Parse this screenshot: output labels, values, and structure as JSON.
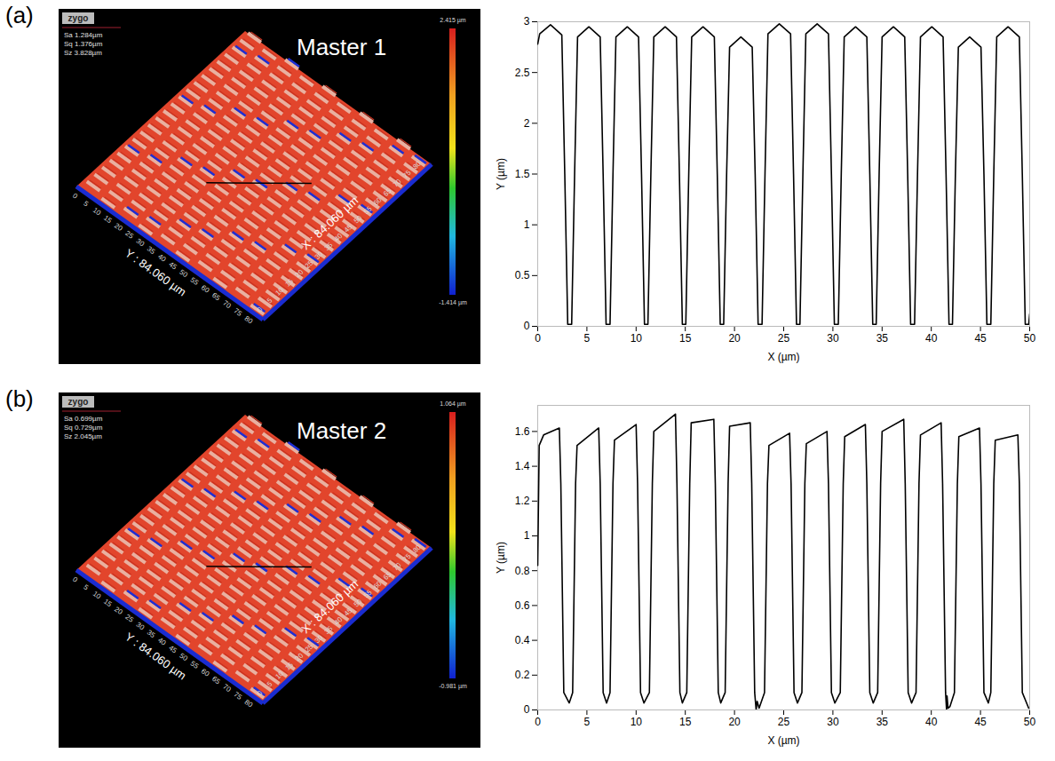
{
  "chart_data": [
    {
      "type": "line",
      "panel_label": "(a)",
      "surface": {
        "title": "Master 1",
        "logo": "zygo",
        "stats": [
          "Sa 1.284µm",
          "Sq 1.376µm",
          "Sz 3.828µm"
        ],
        "x_label": "X : 84.060 µm",
        "y_label": "Y : 84.060 µm",
        "xticks": [
          0,
          5,
          10,
          15,
          20,
          25,
          30,
          35,
          40,
          45,
          50,
          55,
          60,
          65,
          70,
          75,
          80
        ],
        "yticks": [
          0,
          5,
          10,
          15,
          20,
          25,
          30,
          35,
          40,
          45,
          50,
          55,
          60,
          65,
          70,
          75,
          80
        ],
        "colorbar_labels": [
          "2.415 µm",
          "-1.414 µm"
        ]
      },
      "x_label": "X (µm)",
      "y_label": "Y (µm)",
      "color": "#000000",
      "grid": false,
      "xlim": [
        0,
        50
      ],
      "xticks": [
        0,
        5,
        10,
        15,
        20,
        25,
        30,
        35,
        40,
        45,
        50
      ],
      "ylim": [
        0,
        3
      ],
      "yticks": [
        0,
        0.5,
        1,
        1.5,
        2,
        2.5,
        3
      ],
      "x": [
        0,
        0.2,
        1.3,
        2.45,
        2.75,
        3.05,
        3.45,
        3.75,
        4.05,
        5.2,
        6.35,
        6.65,
        6.95,
        7.35,
        7.65,
        7.95,
        9.1,
        10.25,
        10.55,
        10.85,
        11.2,
        11.5,
        11.8,
        12.95,
        14.1,
        14.4,
        14.7,
        15.05,
        15.35,
        15.65,
        16.8,
        17.95,
        18.25,
        18.55,
        18.9,
        19.2,
        19.5,
        20.65,
        21.8,
        22.1,
        22.4,
        22.8,
        23.1,
        23.4,
        24.55,
        25.7,
        26.0,
        26.3,
        26.65,
        26.95,
        27.25,
        28.4,
        29.55,
        29.85,
        30.15,
        30.55,
        30.85,
        31.15,
        32.3,
        33.45,
        33.75,
        34.05,
        34.4,
        34.7,
        35.0,
        36.15,
        37.3,
        37.6,
        37.9,
        38.3,
        38.6,
        38.9,
        40.05,
        41.2,
        41.5,
        41.8,
        42.15,
        42.45,
        42.75,
        43.9,
        45.05,
        45.35,
        45.65,
        46.05,
        46.35,
        46.65,
        47.8,
        48.95,
        49.25,
        49.55,
        49.9,
        50
      ],
      "values": [
        2.78,
        2.88,
        2.97,
        2.87,
        1.5,
        0.02,
        0.02,
        1.5,
        2.85,
        2.95,
        2.85,
        1.5,
        0.02,
        0.02,
        1.5,
        2.85,
        2.95,
        2.85,
        1.5,
        0.02,
        0.02,
        1.5,
        2.85,
        2.95,
        2.85,
        1.5,
        0.02,
        0.02,
        1.5,
        2.85,
        2.95,
        2.85,
        1.5,
        0.02,
        0.02,
        1.5,
        2.75,
        2.85,
        2.75,
        1.5,
        0.02,
        0.02,
        1.5,
        2.88,
        2.98,
        2.88,
        1.5,
        0.02,
        0.02,
        1.5,
        2.88,
        2.98,
        2.88,
        1.5,
        0.02,
        0.02,
        1.5,
        2.85,
        2.95,
        2.85,
        1.5,
        0.02,
        0.02,
        1.5,
        2.85,
        2.95,
        2.85,
        1.5,
        0.02,
        0.02,
        1.5,
        2.85,
        2.95,
        2.85,
        1.5,
        0.02,
        0.02,
        1.5,
        2.75,
        2.85,
        2.75,
        1.5,
        0.02,
        0.02,
        1.5,
        2.85,
        2.95,
        2.85,
        1.5,
        0.02,
        0.02,
        0.12
      ]
    },
    {
      "type": "line",
      "panel_label": "(b)",
      "surface": {
        "title": "Master 2",
        "logo": "zygo",
        "stats": [
          "Sa 0.699µm",
          "Sq 0.729µm",
          "Sz 2.045µm"
        ],
        "x_label": "X : 84.060 µm",
        "y_label": "Y : 84.060 µm",
        "xticks": [
          0,
          5,
          10,
          15,
          20,
          25,
          30,
          35,
          40,
          45,
          50,
          55,
          60,
          65,
          70,
          75,
          80
        ],
        "yticks": [
          0,
          5,
          10,
          15,
          20,
          25,
          30,
          35,
          40,
          45,
          50,
          55,
          60,
          65,
          70,
          75,
          80
        ],
        "colorbar_labels": [
          "1.064 µm",
          "-0.981 µm"
        ]
      },
      "x_label": "X (µm)",
      "y_label": "Y (µm)",
      "color": "#000000",
      "grid": false,
      "xlim": [
        0,
        50
      ],
      "xticks": [
        0,
        5,
        10,
        15,
        20,
        25,
        30,
        35,
        40,
        45,
        50
      ],
      "ylim": [
        0,
        1.75
      ],
      "yticks": [
        0,
        0.2,
        0.4,
        0.6,
        0.8,
        1,
        1.2,
        1.4,
        1.6
      ],
      "x": [
        0,
        0.15,
        0.6,
        2.2,
        2.35,
        2.65,
        3.2,
        3.55,
        3.85,
        4.0,
        6.2,
        6.35,
        6.65,
        7.0,
        7.35,
        7.65,
        7.8,
        10.0,
        10.15,
        10.45,
        10.8,
        11.35,
        11.65,
        11.8,
        14.0,
        14.15,
        14.45,
        14.7,
        15.15,
        15.45,
        15.6,
        17.9,
        18.05,
        18.35,
        18.6,
        19.05,
        19.35,
        19.5,
        21.6,
        21.75,
        22.05,
        22.2,
        22.3,
        22.5,
        23.05,
        23.35,
        23.5,
        25.6,
        25.75,
        26.05,
        26.4,
        26.85,
        27.15,
        27.3,
        29.4,
        29.55,
        29.85,
        30.2,
        30.75,
        31.05,
        31.2,
        33.3,
        33.45,
        33.75,
        34.1,
        34.55,
        34.85,
        35.0,
        37.2,
        37.35,
        37.65,
        38.0,
        38.45,
        38.75,
        38.9,
        41.0,
        41.15,
        41.45,
        41.55,
        41.6,
        41.7,
        41.9,
        42.35,
        42.65,
        42.8,
        44.9,
        45.05,
        45.35,
        45.8,
        46.05,
        46.35,
        46.5,
        48.8,
        48.95,
        49.25,
        49.9
      ],
      "values": [
        0.83,
        1.52,
        1.58,
        1.62,
        1.3,
        0.1,
        0.04,
        0.1,
        1.3,
        1.52,
        1.62,
        1.3,
        0.1,
        0.04,
        0.1,
        1.3,
        1.55,
        1.64,
        1.3,
        0.1,
        0.04,
        0.1,
        1.3,
        1.6,
        1.7,
        1.3,
        0.1,
        0.04,
        0.1,
        1.3,
        1.65,
        1.67,
        1.3,
        0.1,
        0.04,
        0.1,
        1.3,
        1.63,
        1.65,
        1.3,
        0.1,
        0.0,
        0.05,
        0.01,
        0.1,
        1.3,
        1.52,
        1.59,
        1.3,
        0.1,
        0.04,
        0.1,
        1.3,
        1.53,
        1.6,
        1.3,
        0.1,
        0.04,
        0.1,
        1.3,
        1.57,
        1.64,
        1.3,
        0.1,
        0.04,
        0.1,
        1.3,
        1.6,
        1.67,
        1.3,
        0.1,
        0.04,
        0.1,
        1.3,
        1.58,
        1.65,
        1.3,
        0.1,
        0.0,
        0.08,
        0.01,
        0.02,
        0.1,
        1.3,
        1.57,
        1.62,
        1.3,
        0.1,
        0.04,
        0.1,
        1.3,
        1.55,
        1.58,
        1.3,
        0.1,
        0.01
      ]
    }
  ]
}
